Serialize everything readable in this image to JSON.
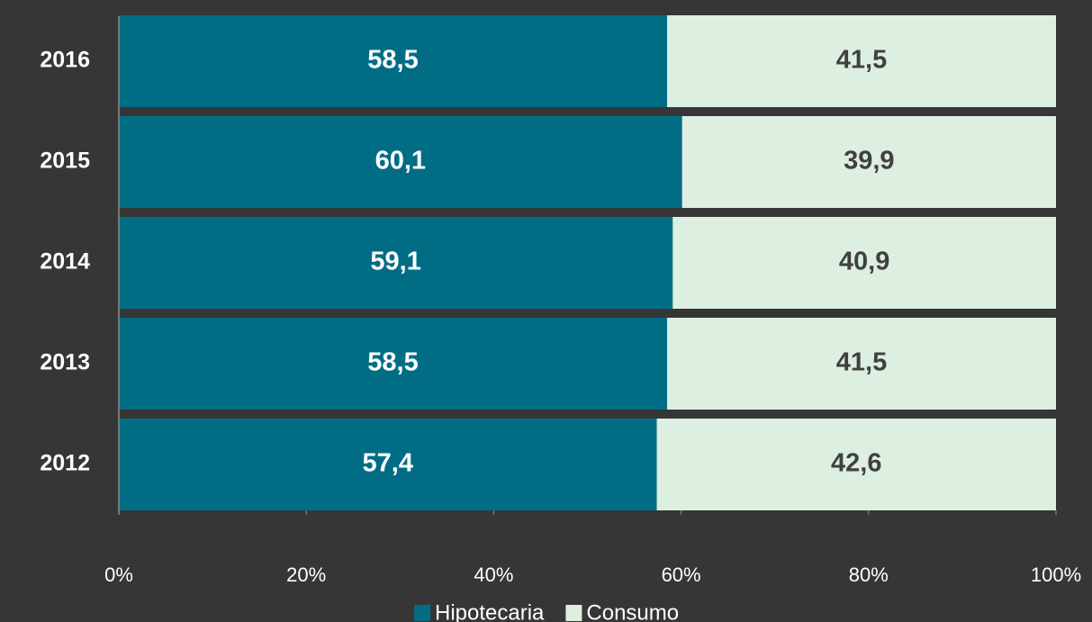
{
  "chart_data": {
    "type": "stacked-bar-horizontal",
    "categories": [
      "2016",
      "2015",
      "2014",
      "2013",
      "2012"
    ],
    "series": [
      {
        "name": "Hipotecaria",
        "color": "#016d85",
        "values": [
          58.5,
          60.1,
          59.1,
          58.5,
          57.4
        ],
        "value_labels": [
          "58,5",
          "60,1",
          "59,1",
          "58,5",
          "57,4"
        ]
      },
      {
        "name": "Consumo",
        "color": "#dcefe0",
        "values": [
          41.5,
          39.9,
          40.9,
          41.5,
          42.6
        ],
        "value_labels": [
          "41,5",
          "39,9",
          "40,9",
          "41,5",
          "42,6"
        ]
      }
    ],
    "xlim": [
      0,
      100
    ],
    "xticks": [
      {
        "value": 0,
        "label": "0%"
      },
      {
        "value": 20,
        "label": "20%"
      },
      {
        "value": 40,
        "label": "40%"
      },
      {
        "value": 60,
        "label": "60%"
      },
      {
        "value": 80,
        "label": "80%"
      },
      {
        "value": 100,
        "label": "100%"
      }
    ],
    "legend": "bottom"
  }
}
